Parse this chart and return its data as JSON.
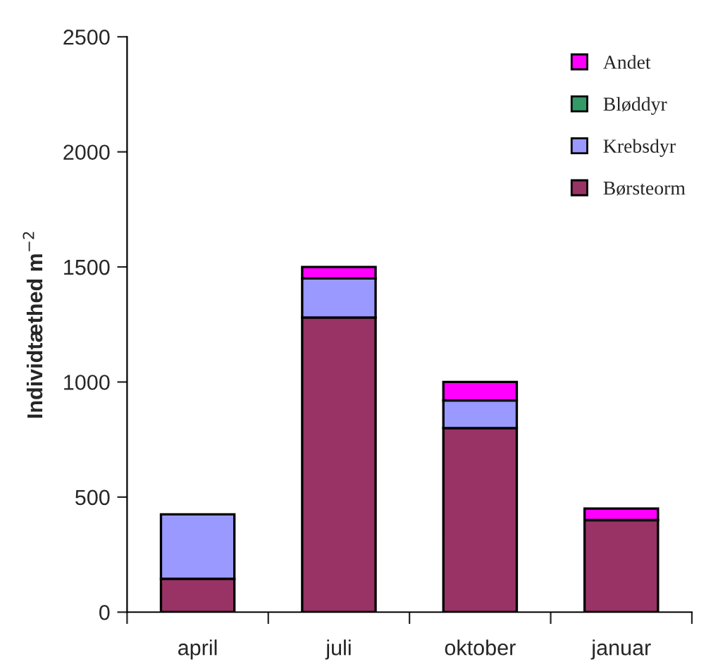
{
  "chart_data": {
    "type": "bar",
    "stacked": true,
    "ylabel": "Individtæthed m$^{−2}$",
    "categories": [
      "april",
      "juli",
      "oktober",
      "januar"
    ],
    "series": [
      {
        "name": "Børsteorm",
        "color": "#993366",
        "values": [
          145,
          1280,
          800,
          400
        ]
      },
      {
        "name": "Krebsdyr",
        "color": "#9999ff",
        "values": [
          280,
          170,
          120,
          null
        ]
      },
      {
        "name": "Bløddyr",
        "color": "#339966",
        "values": [
          null,
          null,
          null,
          null
        ]
      },
      {
        "name": "Andet",
        "color": "#ff00ff",
        "values": [
          null,
          50,
          80,
          50
        ]
      }
    ],
    "ylim": [
      0,
      2500
    ],
    "yticks": [
      0,
      500,
      1000,
      1500,
      2000,
      2500
    ],
    "grid": false,
    "legend": "top right"
  }
}
